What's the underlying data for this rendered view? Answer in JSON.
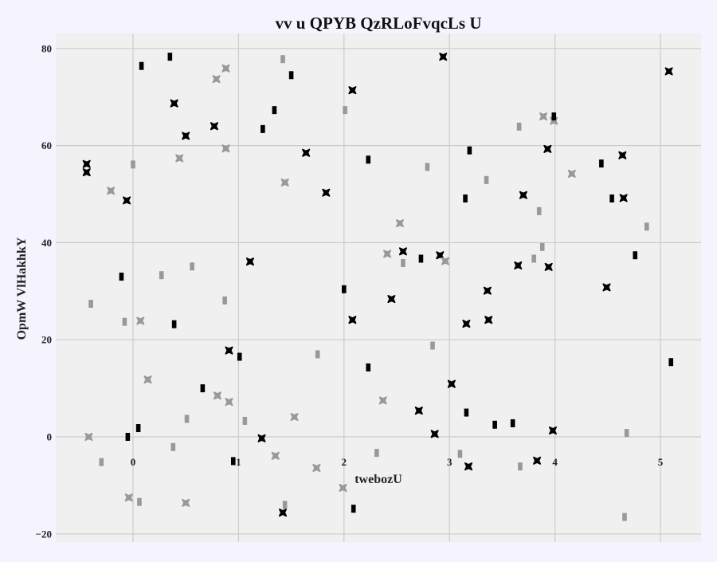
{
  "chart_data": {
    "type": "scatter",
    "title": "vv u QPYB QzRLoFvqcLs U",
    "xlabel": "twebozU",
    "ylabel": "OpmW VlHakhkY",
    "xlim": [
      -0.6,
      5.4
    ],
    "ylim": [
      -20.5,
      83
    ],
    "x_ticks": [
      0,
      1,
      2,
      3,
      4,
      5
    ],
    "y_ticks": [
      -20,
      0,
      20,
      40,
      60,
      80
    ],
    "grid": true,
    "colors": {
      "background": "#f5f3fd",
      "plot_area": "#f0f0f0",
      "grid": "#cbcbcb",
      "dark": "#000000",
      "light": "#999999"
    },
    "series": [
      {
        "marker": "star",
        "color": "#000000",
        "points": [
          [
            -0.44,
            56.2
          ],
          [
            -0.44,
            54.5
          ],
          [
            -0.06,
            48.7
          ],
          [
            0.39,
            68.7
          ],
          [
            0.5,
            62
          ],
          [
            0.77,
            64
          ],
          [
            0.91,
            17.8
          ],
          [
            1.11,
            36.1
          ],
          [
            1.22,
            -0.3
          ],
          [
            1.42,
            -15.6
          ],
          [
            1.64,
            58.5
          ],
          [
            1.83,
            50.3
          ],
          [
            2.08,
            71.4
          ],
          [
            2.08,
            24.1
          ],
          [
            2.45,
            28.4
          ],
          [
            2.56,
            38.2
          ],
          [
            2.71,
            5.4
          ],
          [
            2.86,
            0.6
          ],
          [
            2.91,
            37.4
          ],
          [
            2.94,
            78.3
          ],
          [
            3.02,
            10.9
          ],
          [
            3.16,
            23.3
          ],
          [
            3.18,
            -6.1
          ],
          [
            3.36,
            30.1
          ],
          [
            3.37,
            24.1
          ],
          [
            3.65,
            35.3
          ],
          [
            3.7,
            49.8
          ],
          [
            3.83,
            -4.9
          ],
          [
            3.93,
            59.3
          ],
          [
            3.94,
            35
          ],
          [
            3.98,
            1.3
          ],
          [
            4.49,
            30.8
          ],
          [
            4.64,
            58
          ],
          [
            4.65,
            49.2
          ],
          [
            5.08,
            75.3
          ]
        ]
      },
      {
        "marker": "star",
        "color": "#999999",
        "points": [
          [
            -0.42,
            0
          ],
          [
            -0.21,
            50.7
          ],
          [
            -0.04,
            -12.5
          ],
          [
            0.07,
            23.9
          ],
          [
            0.14,
            11.8
          ],
          [
            0.44,
            57.4
          ],
          [
            0.5,
            -13.6
          ],
          [
            0.79,
            73.7
          ],
          [
            0.8,
            8.5
          ],
          [
            0.88,
            75.9
          ],
          [
            0.88,
            59.4
          ],
          [
            0.91,
            7.2
          ],
          [
            1.35,
            -3.9
          ],
          [
            1.44,
            52.4
          ],
          [
            1.53,
            4.1
          ],
          [
            1.74,
            -6.4
          ],
          [
            1.99,
            -10.5
          ],
          [
            2.37,
            7.5
          ],
          [
            2.41,
            37.7
          ],
          [
            2.53,
            44
          ],
          [
            2.96,
            36.2
          ],
          [
            3.89,
            66
          ],
          [
            3.99,
            65.1
          ],
          [
            4.16,
            54.2
          ]
        ]
      },
      {
        "marker": "bar",
        "color": "#000000",
        "points": [
          [
            -0.11,
            33
          ],
          [
            -0.05,
            0
          ],
          [
            0.05,
            1.8
          ],
          [
            0.08,
            76.4
          ],
          [
            0.35,
            78.3
          ],
          [
            0.39,
            23.2
          ],
          [
            0.66,
            10
          ],
          [
            0.95,
            -5
          ],
          [
            1.01,
            16.5
          ],
          [
            1.23,
            63.4
          ],
          [
            1.34,
            67.3
          ],
          [
            1.5,
            74.5
          ],
          [
            2.0,
            30.4
          ],
          [
            2.09,
            -14.8
          ],
          [
            2.23,
            14.3
          ],
          [
            2.23,
            57.1
          ],
          [
            2.73,
            36.7
          ],
          [
            3.15,
            49.1
          ],
          [
            3.16,
            5
          ],
          [
            3.19,
            59
          ],
          [
            3.43,
            2.5
          ],
          [
            3.6,
            2.8
          ],
          [
            3.99,
            66
          ],
          [
            4.44,
            56.3
          ],
          [
            4.54,
            49.1
          ],
          [
            4.76,
            37.4
          ],
          [
            5.1,
            15.4
          ]
        ]
      },
      {
        "marker": "bar",
        "color": "#999999",
        "points": [
          [
            -0.4,
            27.4
          ],
          [
            -0.3,
            -5.2
          ],
          [
            -0.08,
            23.7
          ],
          [
            0.0,
            56.1
          ],
          [
            0.06,
            -13.4
          ],
          [
            0.27,
            33.3
          ],
          [
            0.51,
            3.7
          ],
          [
            0.56,
            35.1
          ],
          [
            0.38,
            -2.1
          ],
          [
            0.87,
            28.1
          ],
          [
            1.06,
            3.3
          ],
          [
            1.42,
            77.8
          ],
          [
            1.44,
            -14
          ],
          [
            1.75,
            17
          ],
          [
            2.01,
            67.3
          ],
          [
            2.31,
            -3.3
          ],
          [
            2.56,
            35.8
          ],
          [
            2.79,
            55.6
          ],
          [
            2.84,
            18.8
          ],
          [
            3.1,
            -3.5
          ],
          [
            3.35,
            52.9
          ],
          [
            3.66,
            63.9
          ],
          [
            3.67,
            -6.1
          ],
          [
            3.8,
            36.7
          ],
          [
            3.85,
            46.5
          ],
          [
            3.88,
            39.1
          ],
          [
            4.68,
            0.8
          ],
          [
            4.66,
            -16.5
          ],
          [
            4.87,
            43.3
          ]
        ]
      }
    ]
  }
}
